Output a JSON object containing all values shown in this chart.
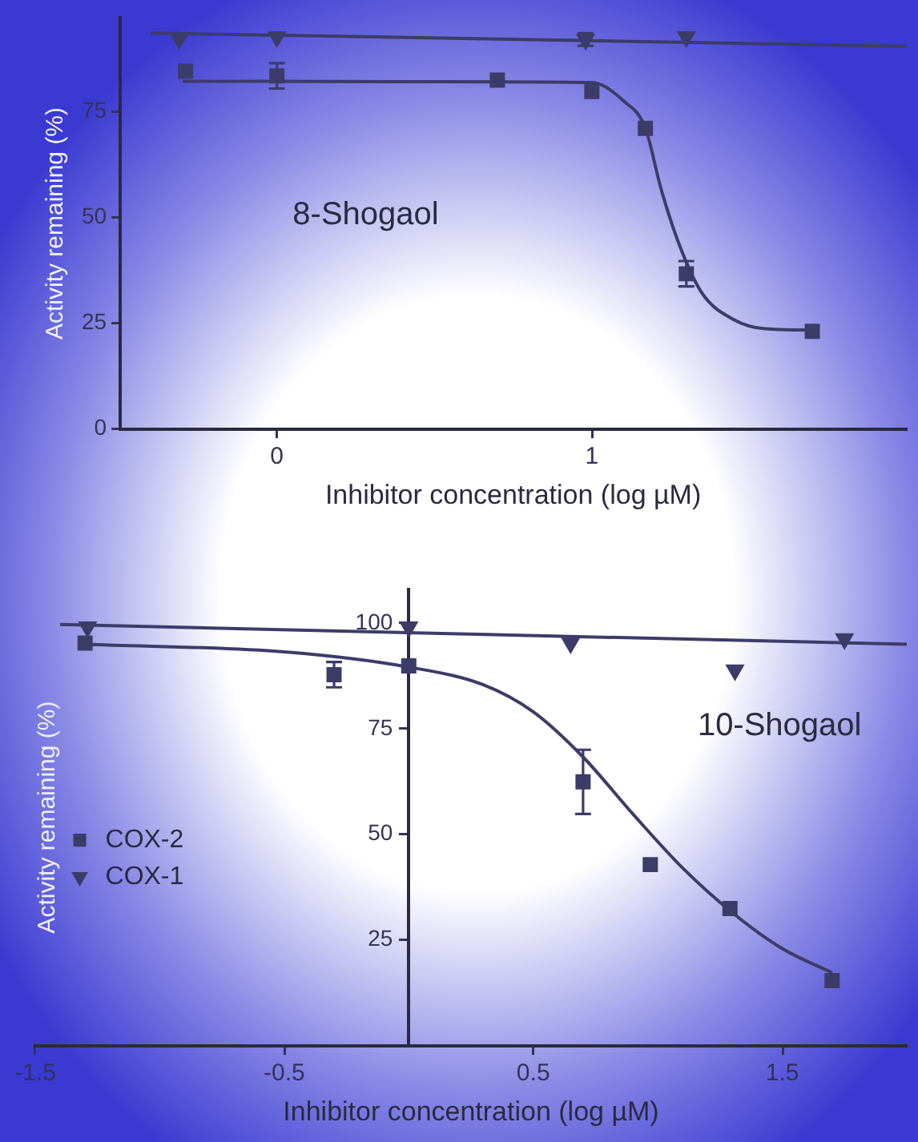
{
  "chart_data": [
    {
      "type": "scatter",
      "xlabel": "Inhibitor concentration (log µM)",
      "ylabel": "Activity remaining (%)",
      "xlim": [
        -0.5,
        2.0
      ],
      "ylim": [
        0,
        97
      ],
      "xticks": [
        0,
        1
      ],
      "yticks": [
        0,
        25,
        50,
        75
      ],
      "grid": false,
      "legend": false,
      "annotations": [
        "8-Shogaol"
      ],
      "series": [
        {
          "type": "line",
          "color": "#3c3c68",
          "marker": "none",
          "x": [
            -0.3,
            0.0,
            0.5,
            1.0,
            1.1,
            1.17,
            1.22,
            1.28,
            1.35,
            1.45,
            1.55,
            1.7
          ],
          "values": [
            82.1,
            82.1,
            82.0,
            81.8,
            77.5,
            71.0,
            56.6,
            43.0,
            32.0,
            25.8,
            23.6,
            23.3
          ]
        },
        {
          "type": "line",
          "color": "#3c3c68",
          "marker": "none",
          "x": [
            -0.4,
            2.0
          ],
          "values": [
            93.5,
            90.4
          ]
        },
        {
          "type": "scatter",
          "color": "#3c3c68",
          "marker": "square",
          "x": [
            -0.29,
            0.0,
            0.7,
            1.0,
            1.17,
            1.3,
            1.7
          ],
          "values": [
            84.5,
            83.4,
            82.4,
            79.7,
            71.0,
            36.6,
            23.0
          ],
          "errors": [
            null,
            3,
            null,
            null,
            null,
            3,
            null
          ]
        },
        {
          "type": "scatter",
          "color": "#3c3c68",
          "marker": "triangle",
          "x": [
            -0.31,
            0.0,
            0.98,
            1.3
          ],
          "values": [
            92.2,
            92.6,
            92.0,
            92.6
          ],
          "errors": [
            null,
            null,
            1.5,
            null
          ]
        }
      ]
    },
    {
      "type": "scatter",
      "xlabel": "Inhibitor concentration (log µM)",
      "ylabel": "Activity remaining (%)",
      "xlim": [
        -1.5,
        2.0
      ],
      "ylim": [
        0,
        108
      ],
      "xticks": [
        -1.5,
        -0.5,
        0.5,
        1.5
      ],
      "yticks": [
        25,
        50,
        75,
        100
      ],
      "grid": false,
      "legend": "left",
      "annotations": [
        "10-Shogaol"
      ],
      "series": [
        {
          "type": "line",
          "color": "#3c3c68",
          "marker": "none",
          "x": [
            -1.3,
            -0.5,
            0.0,
            0.3,
            0.5,
            0.7,
            0.9,
            1.1,
            1.3,
            1.5,
            1.7
          ],
          "values": [
            95.0,
            93.2,
            89.6,
            85.4,
            79.0,
            68.3,
            54.8,
            42.0,
            31.4,
            22.9,
            17.2
          ]
        },
        {
          "type": "line",
          "color": "#3c3c68",
          "marker": "none",
          "x": [
            -1.4,
            2.0
          ],
          "values": [
            99.7,
            95.0
          ]
        },
        {
          "type": "scatter",
          "name": "COX-2",
          "color": "#3c3c68",
          "marker": "square",
          "x": [
            -1.3,
            -0.3,
            0.0,
            0.7,
            0.97,
            1.29,
            1.7
          ],
          "values": [
            95.3,
            87.8,
            89.9,
            62.4,
            42.8,
            32.4,
            15.3
          ],
          "errors": [
            null,
            3,
            null,
            7.6,
            null,
            null,
            null
          ]
        },
        {
          "type": "scatter",
          "name": "COX-1",
          "color": "#3c3c68",
          "marker": "triangle",
          "x": [
            -1.29,
            0.0,
            0.65,
            1.31,
            1.75
          ],
          "values": [
            99.1,
            99.1,
            95.3,
            88.9,
            96.3
          ]
        }
      ]
    }
  ]
}
